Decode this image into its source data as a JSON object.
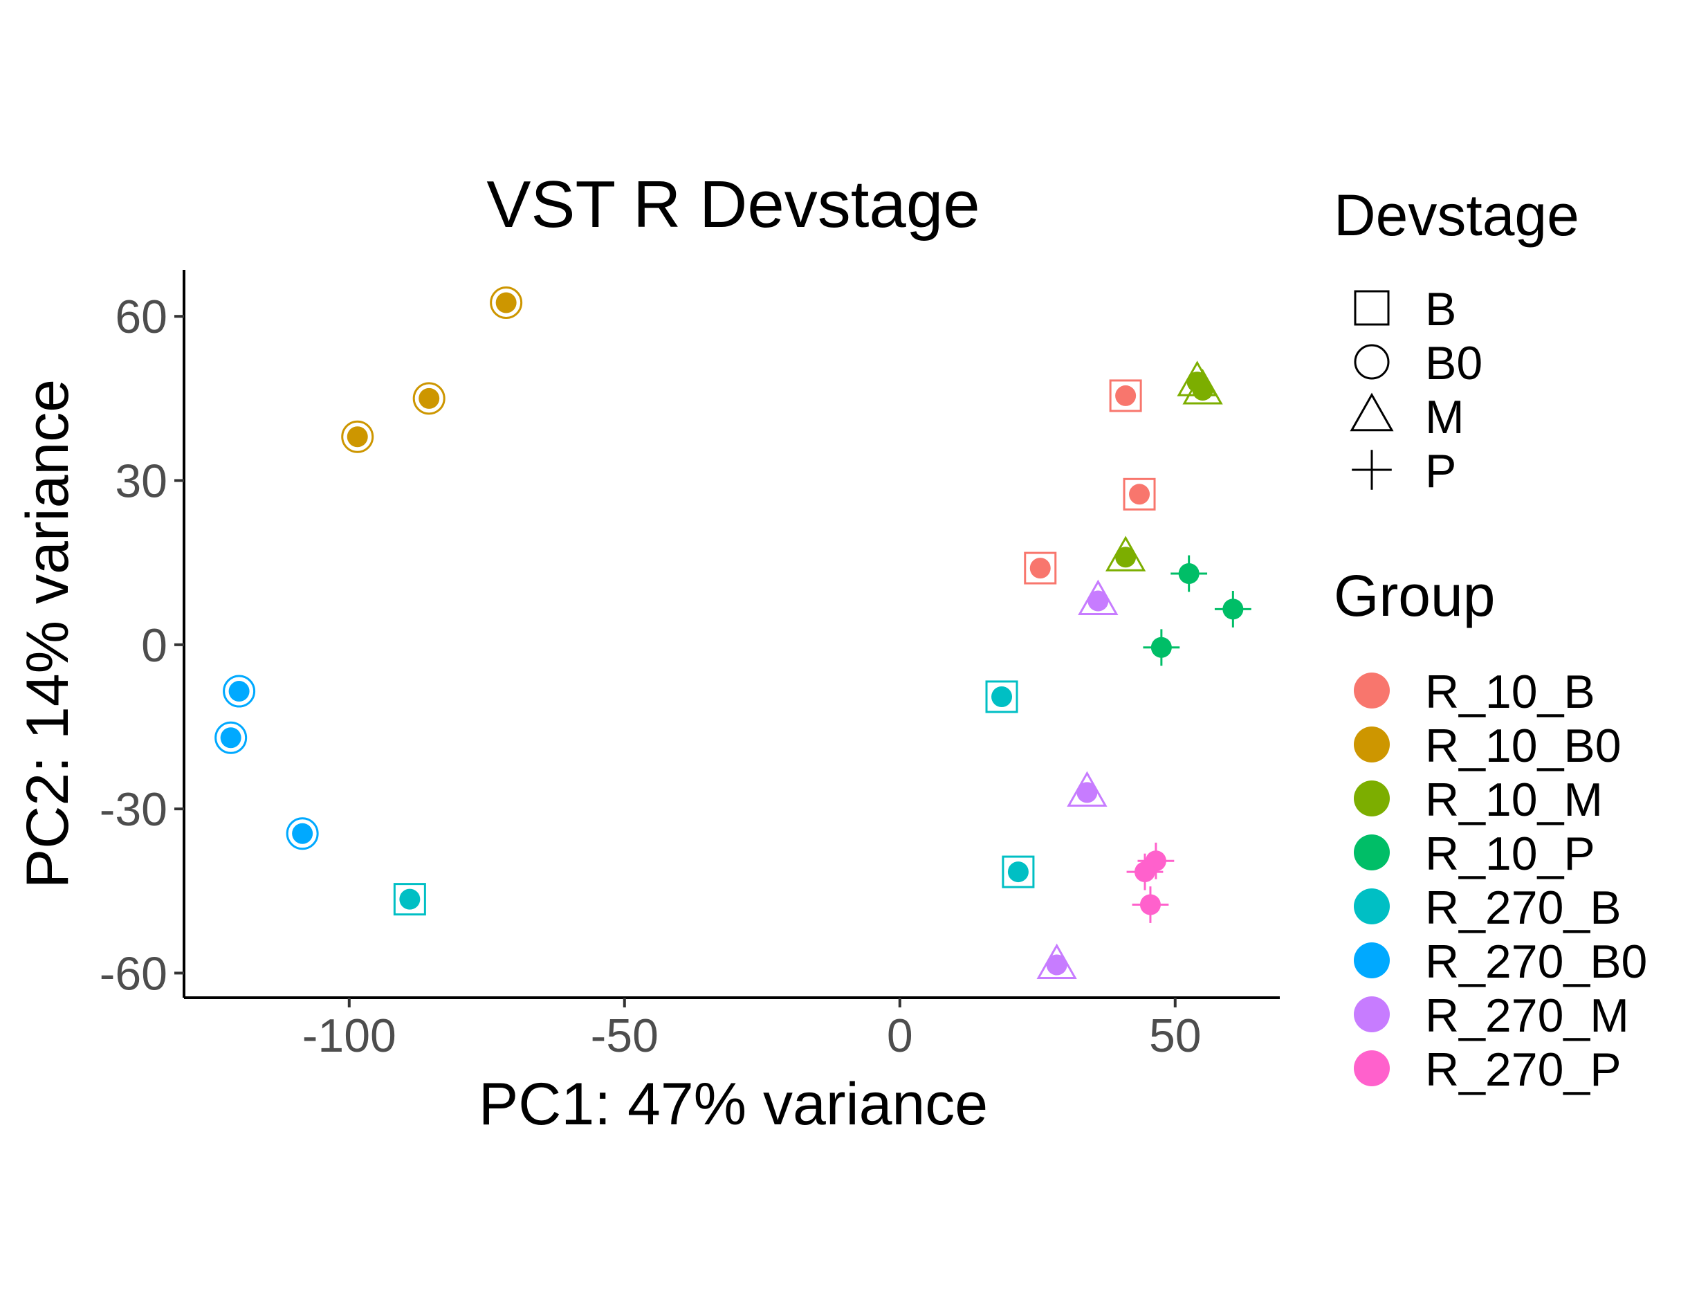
{
  "chart_data": {
    "type": "scatter",
    "title": "VST R Devstage",
    "xlabel": "PC1: 47% variance",
    "ylabel": "PC2: 14% variance",
    "xlim": [
      -130,
      69
    ],
    "ylim": [
      -64.5,
      68.5
    ],
    "x_ticks": [
      -100,
      -50,
      0,
      50
    ],
    "y_ticks": [
      -60,
      -30,
      0,
      30,
      60
    ],
    "grid": false,
    "legend_placement": "right",
    "shape_legend": {
      "title": "Devstage",
      "entries": [
        {
          "label": "B",
          "shape": "square"
        },
        {
          "label": "B0",
          "shape": "circle"
        },
        {
          "label": "M",
          "shape": "triangle"
        },
        {
          "label": "P",
          "shape": "plus"
        }
      ]
    },
    "color_legend": {
      "title": "Group",
      "entries": [
        {
          "label": "R_10_B",
          "color": "#F8766D"
        },
        {
          "label": "R_10_B0",
          "color": "#CD9600"
        },
        {
          "label": "R_10_M",
          "color": "#7CAE00"
        },
        {
          "label": "R_10_P",
          "color": "#00BE67"
        },
        {
          "label": "R_270_B",
          "color": "#00BFC4"
        },
        {
          "label": "R_270_B0",
          "color": "#00A9FF"
        },
        {
          "label": "R_270_M",
          "color": "#C77CFF"
        },
        {
          "label": "R_270_P",
          "color": "#FF61CC"
        }
      ]
    },
    "points": [
      {
        "group": "R_10_B",
        "devstage": "B",
        "x": 41,
        "y": 45.5
      },
      {
        "group": "R_10_B",
        "devstage": "B",
        "x": 43.5,
        "y": 27.5
      },
      {
        "group": "R_10_B",
        "devstage": "B",
        "x": 25.5,
        "y": 14
      },
      {
        "group": "R_10_B0",
        "devstage": "B0",
        "x": -71.5,
        "y": 62.5
      },
      {
        "group": "R_10_B0",
        "devstage": "B0",
        "x": -85.5,
        "y": 45
      },
      {
        "group": "R_10_B0",
        "devstage": "B0",
        "x": -98.5,
        "y": 38
      },
      {
        "group": "R_10_M",
        "devstage": "M",
        "x": 54,
        "y": 48
      },
      {
        "group": "R_10_M",
        "devstage": "M",
        "x": 55,
        "y": 46.5
      },
      {
        "group": "R_10_M",
        "devstage": "M",
        "x": 41,
        "y": 16
      },
      {
        "group": "R_10_P",
        "devstage": "P",
        "x": 52.5,
        "y": 13
      },
      {
        "group": "R_10_P",
        "devstage": "P",
        "x": 60.5,
        "y": 6.5
      },
      {
        "group": "R_10_P",
        "devstage": "P",
        "x": 47.5,
        "y": -0.5
      },
      {
        "group": "R_270_B",
        "devstage": "B",
        "x": 18.5,
        "y": -9.5
      },
      {
        "group": "R_270_B",
        "devstage": "B",
        "x": 21.5,
        "y": -41.5
      },
      {
        "group": "R_270_B",
        "devstage": "B",
        "x": -89,
        "y": -46.5
      },
      {
        "group": "R_270_B0",
        "devstage": "B0",
        "x": -120,
        "y": -8.5
      },
      {
        "group": "R_270_B0",
        "devstage": "B0",
        "x": -121.5,
        "y": -17
      },
      {
        "group": "R_270_B0",
        "devstage": "B0",
        "x": -108.5,
        "y": -34.5
      },
      {
        "group": "R_270_M",
        "devstage": "M",
        "x": 36,
        "y": 8
      },
      {
        "group": "R_270_M",
        "devstage": "M",
        "x": 34,
        "y": -27
      },
      {
        "group": "R_270_M",
        "devstage": "M",
        "x": 28.5,
        "y": -58.5
      },
      {
        "group": "R_270_P",
        "devstage": "P",
        "x": 46.5,
        "y": -39.5
      },
      {
        "group": "R_270_P",
        "devstage": "P",
        "x": 44.5,
        "y": -41.5
      },
      {
        "group": "R_270_P",
        "devstage": "P",
        "x": 45.5,
        "y": -47.5
      }
    ]
  }
}
